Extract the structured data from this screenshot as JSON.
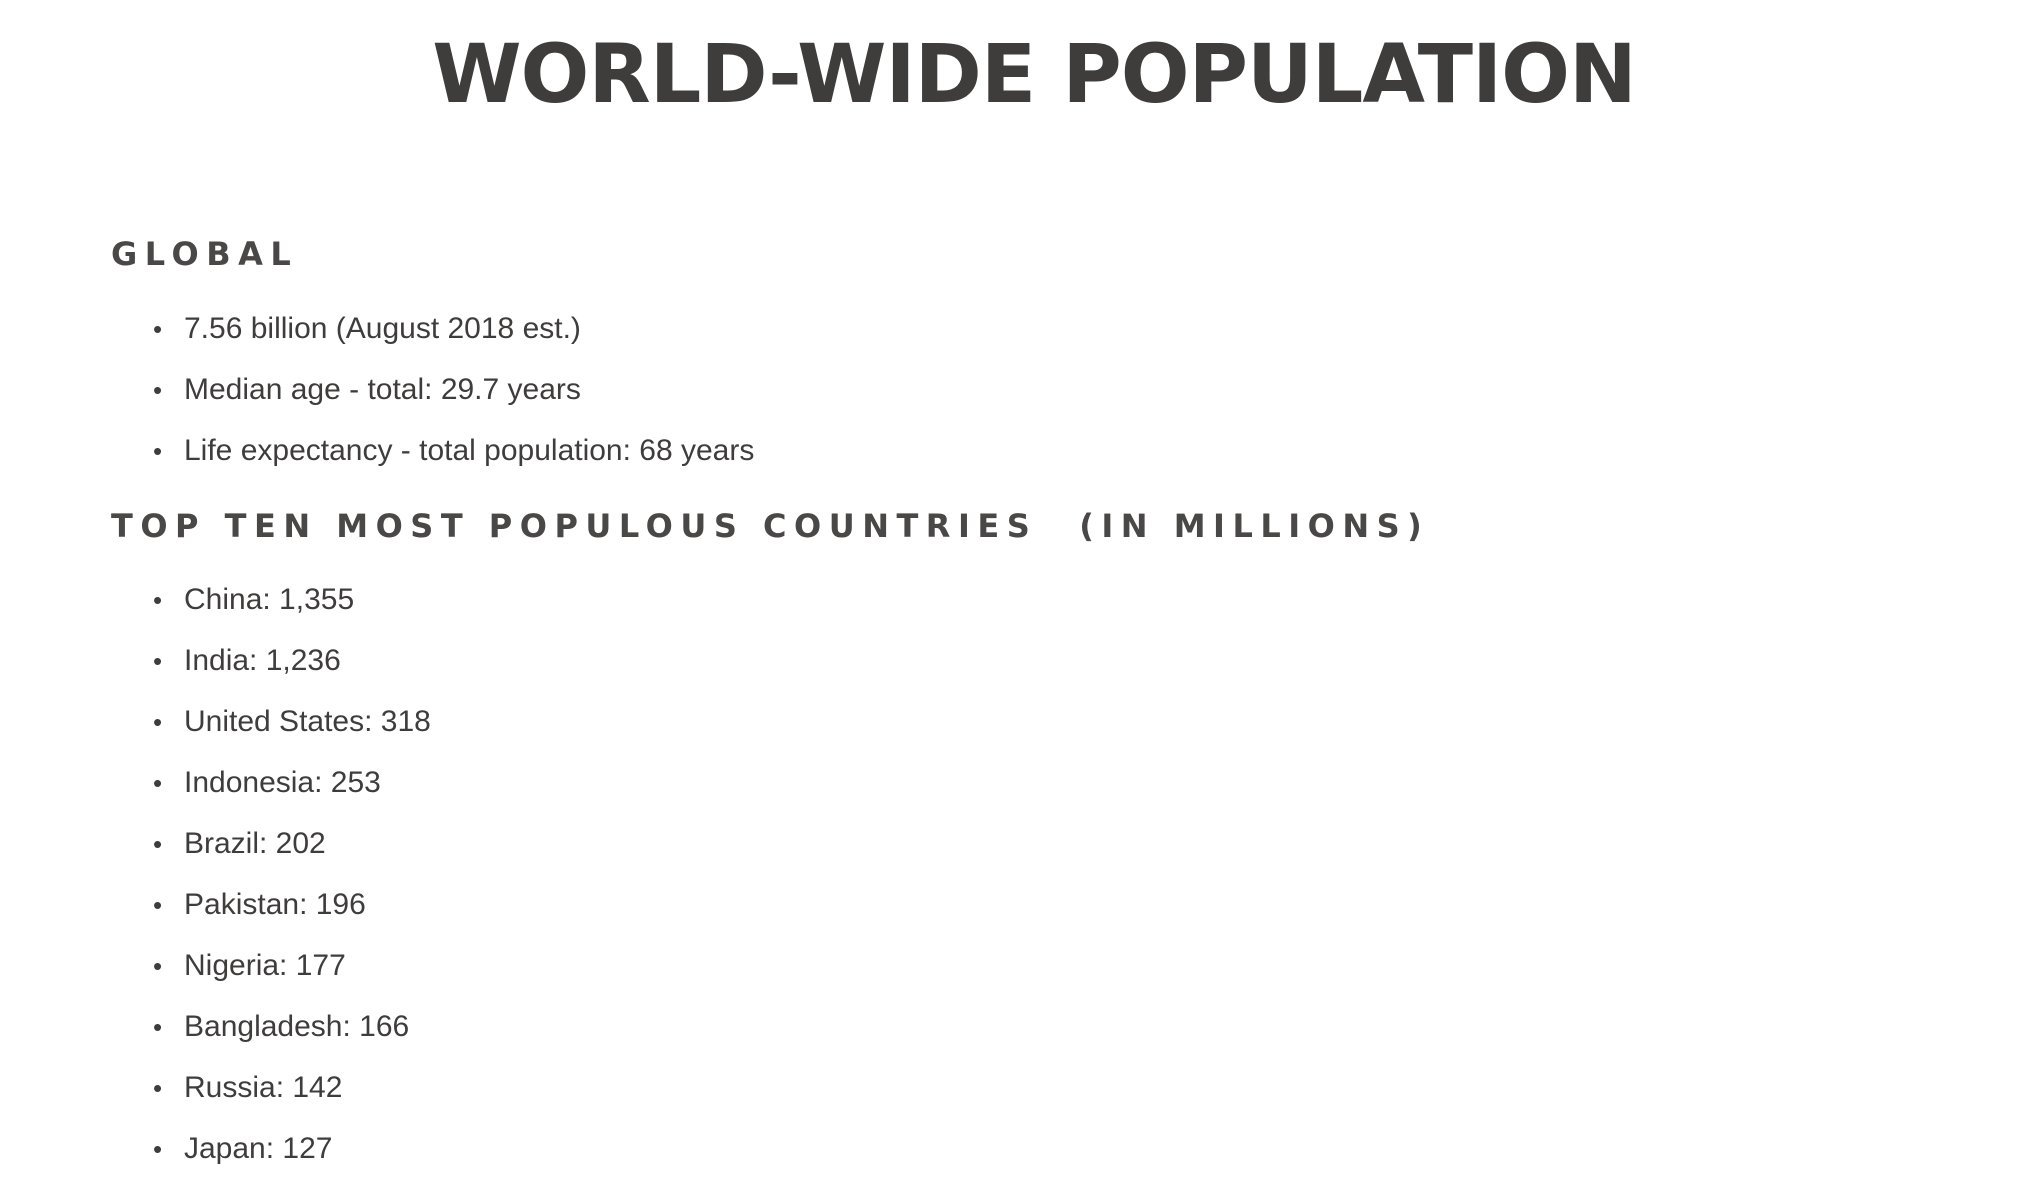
{
  "title": "WORLD-WIDE POPULATION",
  "global": {
    "heading": "GLOBAL",
    "items": [
      "7.56 billion (August 2018 est.)",
      "Median age - total: 29.7 years",
      "Life expectancy - total population: 68 years"
    ]
  },
  "top_ten": {
    "heading": "TOP TEN MOST POPULOUS COUNTRIES",
    "heading_suffix": "(IN MILLIONS)",
    "items": [
      "China: 1,355",
      "India: 1,236",
      "United States: 318",
      "Indonesia: 253",
      "Brazil: 202",
      "Pakistan: 196",
      "Nigeria: 177",
      "Bangladesh: 166",
      "Russia: 142",
      "Japan: 127"
    ]
  },
  "bullet_glyph": "•"
}
